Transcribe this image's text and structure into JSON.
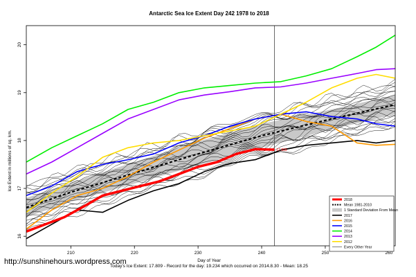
{
  "chart_data": {
    "type": "line",
    "title": "Antarctic Sea Ice Extent Day 242 1978 to 2018",
    "xlabel": "Day of Year",
    "ylabel": "Ice Extent in millions of sq. km.",
    "xlim": [
      203,
      261
    ],
    "ylim": [
      15.8,
      20.4
    ],
    "x_ticks": [
      210,
      220,
      230,
      240,
      250,
      260
    ],
    "y_ticks": [
      16,
      17,
      18,
      19,
      20
    ],
    "vline_day": 242,
    "current_label": "17.809",
    "footer": "Today's Ice Extent: 17.809  -  Record for the day: 19.234 which occurred on 2014.8.30  -  Mean: 18.25",
    "watermark": "http://sunshinehours.wordpress.com",
    "legend_position": "bottom-right",
    "mean": {
      "name": "Mean 1981-2010",
      "x": [
        203,
        210,
        220,
        230,
        240,
        250,
        261
      ],
      "y": [
        16.6,
        16.92,
        17.32,
        17.72,
        18.1,
        18.42,
        18.75
      ]
    },
    "std_band": {
      "name": "1 Standard Deviation From Mean",
      "x": [
        203,
        210,
        220,
        230,
        240,
        250,
        261
      ],
      "upper": [
        16.8,
        17.12,
        17.55,
        17.98,
        18.35,
        18.62,
        18.95
      ],
      "lower": [
        16.4,
        16.72,
        17.1,
        17.48,
        17.85,
        18.2,
        18.55
      ]
    },
    "series": [
      {
        "name": "2018",
        "color": "#ff0000",
        "width": 3.5,
        "x": [
          203,
          206,
          209,
          212,
          215,
          218,
          221,
          224,
          227,
          230,
          233,
          236,
          239,
          242
        ],
        "y": [
          16.1,
          16.25,
          16.4,
          16.62,
          16.85,
          16.95,
          17.05,
          17.15,
          17.3,
          17.45,
          17.55,
          17.72,
          17.82,
          17.809
        ]
      },
      {
        "name": "2017",
        "color": "#000000",
        "width": 1.6,
        "x": [
          203,
          207,
          211,
          215,
          219,
          223,
          227,
          231,
          235,
          239,
          243,
          247,
          251,
          255,
          258,
          261
        ],
        "y": [
          15.95,
          16.25,
          16.55,
          16.5,
          16.75,
          16.95,
          17.1,
          17.35,
          17.52,
          17.6,
          17.8,
          17.9,
          17.95,
          18.0,
          17.95,
          18.0
        ]
      },
      {
        "name": "2016",
        "color": "#ff9900",
        "width": 1.6,
        "x": [
          203,
          207,
          211,
          215,
          219,
          223,
          227,
          231,
          235,
          239,
          243,
          247,
          251,
          255,
          258,
          261
        ],
        "y": [
          16.15,
          16.55,
          16.85,
          17.0,
          17.25,
          17.55,
          17.8,
          18.05,
          18.25,
          18.45,
          18.55,
          18.4,
          18.3,
          17.95,
          17.9,
          17.92
        ]
      },
      {
        "name": "2015",
        "color": "#0000ff",
        "width": 1.6,
        "x": [
          203,
          207,
          211,
          215,
          219,
          223,
          227,
          231,
          235,
          239,
          243,
          247,
          251,
          255,
          258,
          261
        ],
        "y": [
          16.85,
          17.05,
          17.35,
          17.5,
          17.6,
          17.72,
          17.95,
          18.1,
          18.3,
          18.45,
          18.55,
          18.6,
          18.5,
          18.45,
          18.35,
          18.3
        ]
      },
      {
        "name": "2014",
        "color": "#00ee00",
        "width": 1.6,
        "x": [
          203,
          207,
          211,
          215,
          219,
          223,
          227,
          231,
          235,
          239,
          243,
          247,
          251,
          255,
          258,
          261
        ],
        "y": [
          17.55,
          17.85,
          18.1,
          18.35,
          18.65,
          18.8,
          19.0,
          19.1,
          19.15,
          19.2,
          19.23,
          19.35,
          19.5,
          19.75,
          19.95,
          20.2
        ]
      },
      {
        "name": "2013",
        "color": "#9900ff",
        "width": 1.6,
        "x": [
          203,
          207,
          211,
          215,
          219,
          223,
          227,
          231,
          235,
          239,
          243,
          247,
          251,
          255,
          258,
          261
        ],
        "y": [
          17.3,
          17.55,
          17.85,
          18.15,
          18.45,
          18.65,
          18.85,
          18.95,
          19.02,
          19.1,
          19.12,
          19.2,
          19.3,
          19.4,
          19.48,
          19.5
        ]
      },
      {
        "name": "2012",
        "color": "#ffdd00",
        "width": 1.6,
        "x": [
          203,
          207,
          211,
          215,
          219,
          223,
          227,
          231,
          235,
          239,
          243,
          247,
          251,
          255,
          258,
          261
        ],
        "y": [
          16.5,
          16.9,
          17.25,
          17.65,
          17.85,
          17.95,
          18.0,
          18.1,
          18.2,
          18.3,
          18.55,
          18.8,
          19.1,
          19.3,
          19.38,
          19.3
        ]
      },
      {
        "name": "Every Other Year",
        "color": "#000000",
        "width": 0.5
      }
    ]
  }
}
